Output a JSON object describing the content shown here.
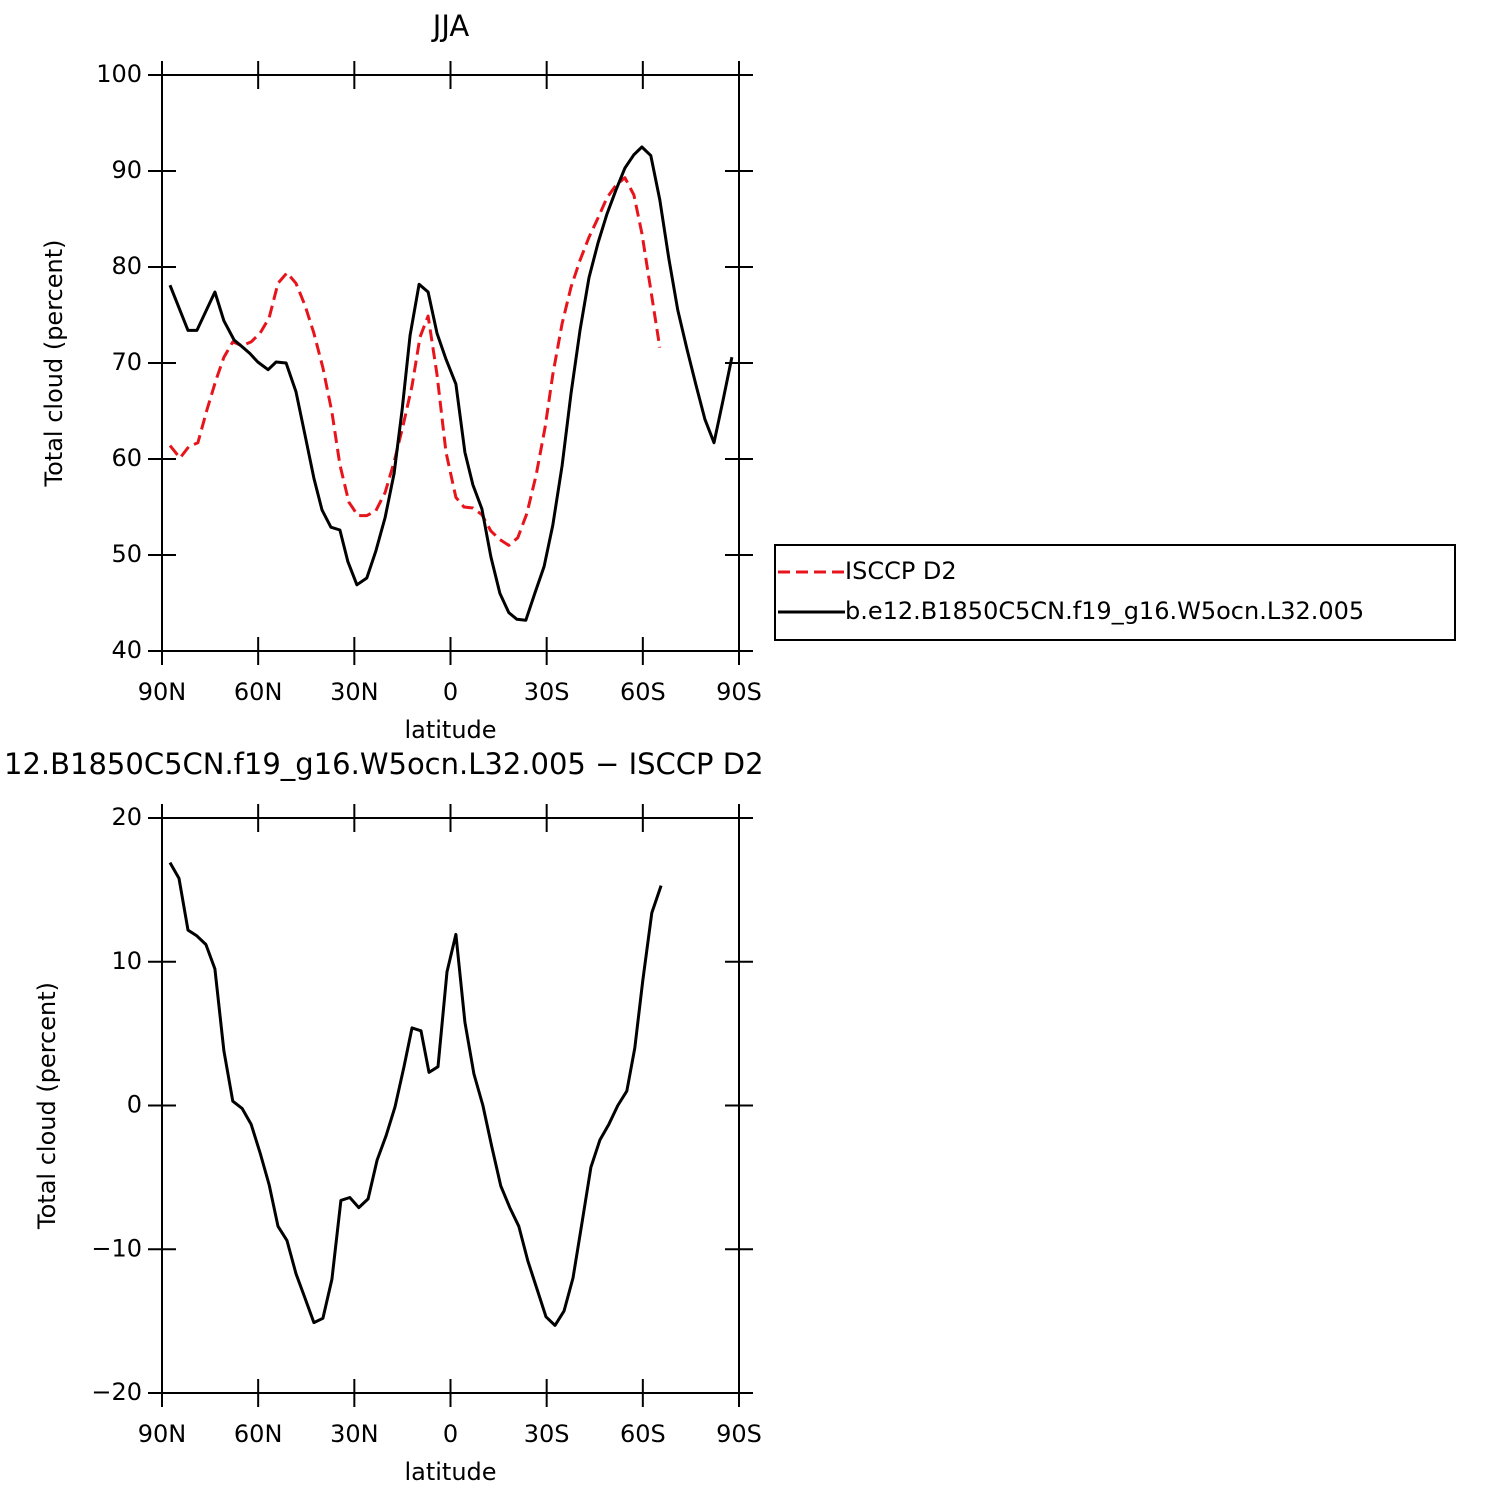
{
  "chart_data": [
    {
      "type": "line",
      "title": "JJA",
      "xlabel": "latitude",
      "ylabel": "Total cloud (percent)",
      "xlim": [
        90,
        -90
      ],
      "ylim": [
        40,
        100
      ],
      "xticks": [
        {
          "value": 90,
          "label": "90N"
        },
        {
          "value": 60,
          "label": "60N"
        },
        {
          "value": 30,
          "label": "30N"
        },
        0,
        {
          "value": -30,
          "label": "30S"
        },
        {
          "value": -60,
          "label": "60S"
        },
        {
          "value": -90,
          "label": "90S"
        }
      ],
      "yticks": [
        40,
        50,
        60,
        70,
        80,
        90,
        100
      ],
      "legend": "right",
      "series": [
        {
          "name": "ISCCP D2",
          "color": "#e8141b",
          "style": "dashed",
          "x": [
            87.5,
            84.4,
            81.6,
            78.8,
            76.0,
            73.2,
            70.7,
            67.9,
            65.0,
            62.2,
            59.4,
            56.6,
            53.8,
            51.0,
            48.2,
            45.4,
            42.6,
            39.8,
            37.0,
            34.5,
            31.7,
            28.9,
            26.1,
            23.3,
            20.4,
            17.6,
            14.8,
            12.0,
            9.5,
            7.0,
            4.2,
            1.4,
            -1.7,
            -4.2,
            -7.0,
            -9.8,
            -12.6,
            -15.4,
            -18.2,
            -21.0,
            -23.8,
            -26.7,
            -29.5,
            -31.9,
            -34.8,
            -37.6,
            -40.4,
            -43.2,
            -46.0,
            -48.8,
            -51.6,
            -54.4,
            -57.2,
            -59.7,
            -62.5,
            -65.3
          ],
          "values": [
            61.4,
            60.1,
            61.3,
            61.7,
            65.1,
            68.2,
            70.6,
            72.2,
            71.8,
            72.2,
            73.1,
            74.7,
            78.3,
            79.4,
            78.3,
            76.0,
            73.1,
            69.5,
            64.9,
            59.4,
            55.5,
            54.1,
            54.1,
            54.6,
            56.5,
            59.7,
            63.5,
            67.6,
            72.7,
            74.9,
            68.8,
            60.7,
            56.0,
            55.0,
            54.9,
            54.2,
            52.5,
            51.6,
            51.0,
            51.8,
            54.3,
            58.3,
            63.3,
            68.8,
            74.1,
            77.9,
            80.7,
            83.1,
            85.1,
            87.2,
            88.5,
            89.3,
            87.5,
            83.5,
            77.6,
            71.6
          ]
        },
        {
          "name": "b.e12.B1850C5CN.f19_g16.W5ocn.L32.005",
          "color": "#000000",
          "style": "solid",
          "x": [
            87.5,
            81.9,
            79.1,
            73.5,
            70.7,
            67.5,
            65.0,
            62.6,
            60.1,
            56.9,
            54.4,
            51.3,
            48.2,
            45.4,
            42.6,
            40.1,
            37.3,
            34.5,
            32.0,
            29.2,
            26.1,
            23.3,
            20.4,
            17.6,
            15.1,
            12.6,
            9.8,
            7.0,
            4.2,
            1.4,
            -1.7,
            -4.5,
            -7.0,
            -9.8,
            -12.6,
            -15.4,
            -18.2,
            -20.7,
            -23.5,
            -26.3,
            -29.2,
            -31.9,
            -34.8,
            -37.6,
            -40.4,
            -43.2,
            -46.0,
            -48.8,
            -51.6,
            -54.4,
            -57.2,
            -59.7,
            -62.5,
            -65.3,
            -68.1,
            -70.9,
            -73.8,
            -76.6,
            -79.4,
            -82.2,
            -85.0,
            -87.8
          ],
          "values": [
            78.1,
            73.4,
            73.4,
            77.4,
            74.4,
            72.4,
            71.7,
            71.0,
            70.1,
            69.3,
            70.1,
            70.0,
            67.0,
            62.5,
            58.0,
            54.7,
            52.9,
            52.6,
            49.3,
            46.9,
            47.6,
            50.4,
            53.9,
            58.5,
            65.1,
            72.9,
            78.2,
            77.4,
            73.1,
            70.4,
            67.8,
            60.7,
            57.3,
            54.8,
            49.8,
            46.0,
            44.0,
            43.3,
            43.2,
            46.0,
            48.8,
            53.1,
            59.3,
            66.8,
            73.4,
            78.9,
            82.5,
            85.5,
            88.0,
            90.3,
            91.7,
            92.5,
            91.6,
            87.0,
            80.9,
            75.5,
            71.4,
            67.7,
            64.1,
            61.7,
            66.1,
            70.6
          ]
        }
      ]
    },
    {
      "type": "line",
      "title": "12.B1850C5CN.f19_g16.W5ocn.L32.005 − ISCCP D2",
      "xlabel": "latitude",
      "ylabel": "Total cloud (percent)",
      "xlim": [
        90,
        -90
      ],
      "ylim": [
        -20,
        20
      ],
      "xticks": [
        {
          "value": 90,
          "label": "90N"
        },
        {
          "value": 60,
          "label": "60N"
        },
        {
          "value": 30,
          "label": "30N"
        },
        0,
        {
          "value": -30,
          "label": "30S"
        },
        {
          "value": -60,
          "label": "60S"
        },
        {
          "value": -90,
          "label": "90S"
        }
      ],
      "yticks": [
        {
          "value": -20,
          "label": "−20"
        },
        {
          "value": -10,
          "label": "−10"
        },
        0,
        10,
        20
      ],
      "series": [
        {
          "color": "#000000",
          "style": "solid",
          "x": [
            87.5,
            84.7,
            81.9,
            79.1,
            76.3,
            73.5,
            70.7,
            67.9,
            65.0,
            62.2,
            59.4,
            56.6,
            53.8,
            51.0,
            48.2,
            45.4,
            42.6,
            39.8,
            37.0,
            34.2,
            31.4,
            28.6,
            25.7,
            22.9,
            20.1,
            17.3,
            14.5,
            12.0,
            9.2,
            6.7,
            3.9,
            1.1,
            -1.7,
            -4.5,
            -7.3,
            -10.1,
            -12.9,
            -15.7,
            -18.5,
            -21.3,
            -24.1,
            -26.9,
            -29.8,
            -32.6,
            -35.4,
            -38.2,
            -41.0,
            -43.8,
            -46.6,
            -49.4,
            -52.2,
            -55.0,
            -57.5,
            -60.0,
            -62.8,
            -65.7
          ],
          "values": [
            16.9,
            15.8,
            12.2,
            11.8,
            11.2,
            9.5,
            3.8,
            0.3,
            -0.2,
            -1.3,
            -3.3,
            -5.5,
            -8.4,
            -9.4,
            -11.7,
            -13.4,
            -15.1,
            -14.8,
            -12.1,
            -6.6,
            -6.4,
            -7.1,
            -6.5,
            -3.8,
            -2.1,
            -0.1,
            2.7,
            5.4,
            5.2,
            2.3,
            2.7,
            9.3,
            11.9,
            5.8,
            2.2,
            0.0,
            -2.9,
            -5.6,
            -7.1,
            -8.4,
            -10.8,
            -12.7,
            -14.7,
            -15.3,
            -14.3,
            -12.0,
            -8.2,
            -4.3,
            -2.4,
            -1.3,
            0.0,
            1.0,
            4.0,
            8.7,
            13.4,
            15.3
          ]
        }
      ]
    }
  ]
}
